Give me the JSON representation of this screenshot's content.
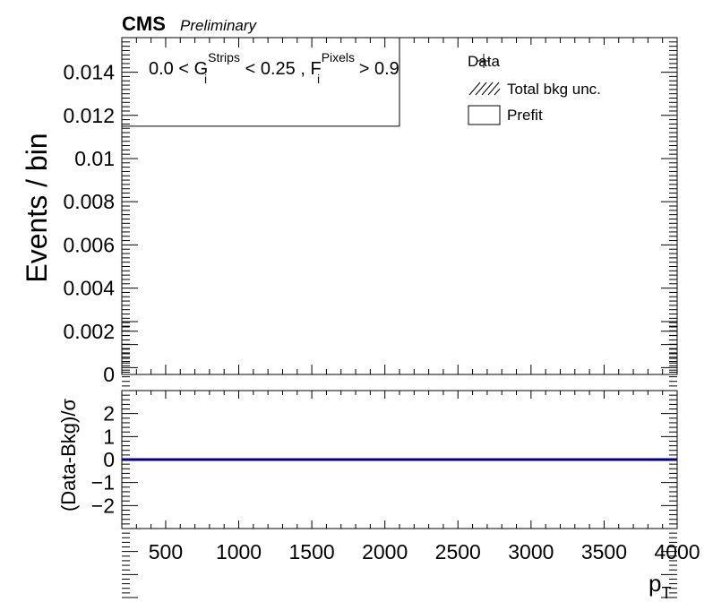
{
  "header": {
    "experiment": "CMS",
    "status": "Preliminary"
  },
  "selection": {
    "part1": "0.0 < G",
    "g_sup": "Strips",
    "g_sub": "i",
    "part2": " < 0.25 , F",
    "f_sup": "Pixels",
    "f_sub": "i",
    "part3": " > 0.9"
  },
  "legend": {
    "entries": [
      "Data",
      "Total bkg unc.",
      "Prefit"
    ],
    "placement": "top-right"
  },
  "chart_data": [
    {
      "type": "line",
      "title": "",
      "xlabel": "",
      "ylabel": "Events / bin",
      "xlim": [
        200,
        4000
      ],
      "ylim": [
        0,
        0.0156
      ],
      "y_ticks": [
        0,
        0.002,
        0.004,
        0.006,
        0.008,
        0.01,
        0.012,
        0.014
      ],
      "y_tick_labels": [
        "0",
        "0.002",
        "0.004",
        "0.006",
        "0.008",
        "0.01",
        "0.012",
        "0.014"
      ],
      "series": [
        {
          "name": "Prefit",
          "x": [
            200,
            2100
          ],
          "y": [
            0.0115,
            0.0115
          ]
        }
      ],
      "markers": [
        {
          "x": 2100,
          "y": [
            0.0115,
            0.0156
          ]
        }
      ],
      "grid": false
    },
    {
      "type": "line",
      "title": "",
      "xlabel": "p",
      "xlabel_sub": "T",
      "ylabel": "(Data-Bkg)/σ",
      "xlim": [
        200,
        4000
      ],
      "ylim": [
        -3,
        3
      ],
      "x_ticks": [
        500,
        1000,
        1500,
        2000,
        2500,
        3000,
        3500,
        4000
      ],
      "x_tick_labels": [
        "500",
        "1000",
        "1500",
        "2000",
        "2500",
        "3000",
        "3500",
        "4000"
      ],
      "y_ticks": [
        -2,
        -1,
        0,
        1,
        2
      ],
      "y_tick_labels": [
        "−2",
        "−1",
        "0",
        "1",
        "2"
      ],
      "series": [
        {
          "x": [
            200,
            4000
          ],
          "y": [
            0,
            0
          ],
          "color": "#00007f"
        }
      ],
      "grid": false
    }
  ]
}
